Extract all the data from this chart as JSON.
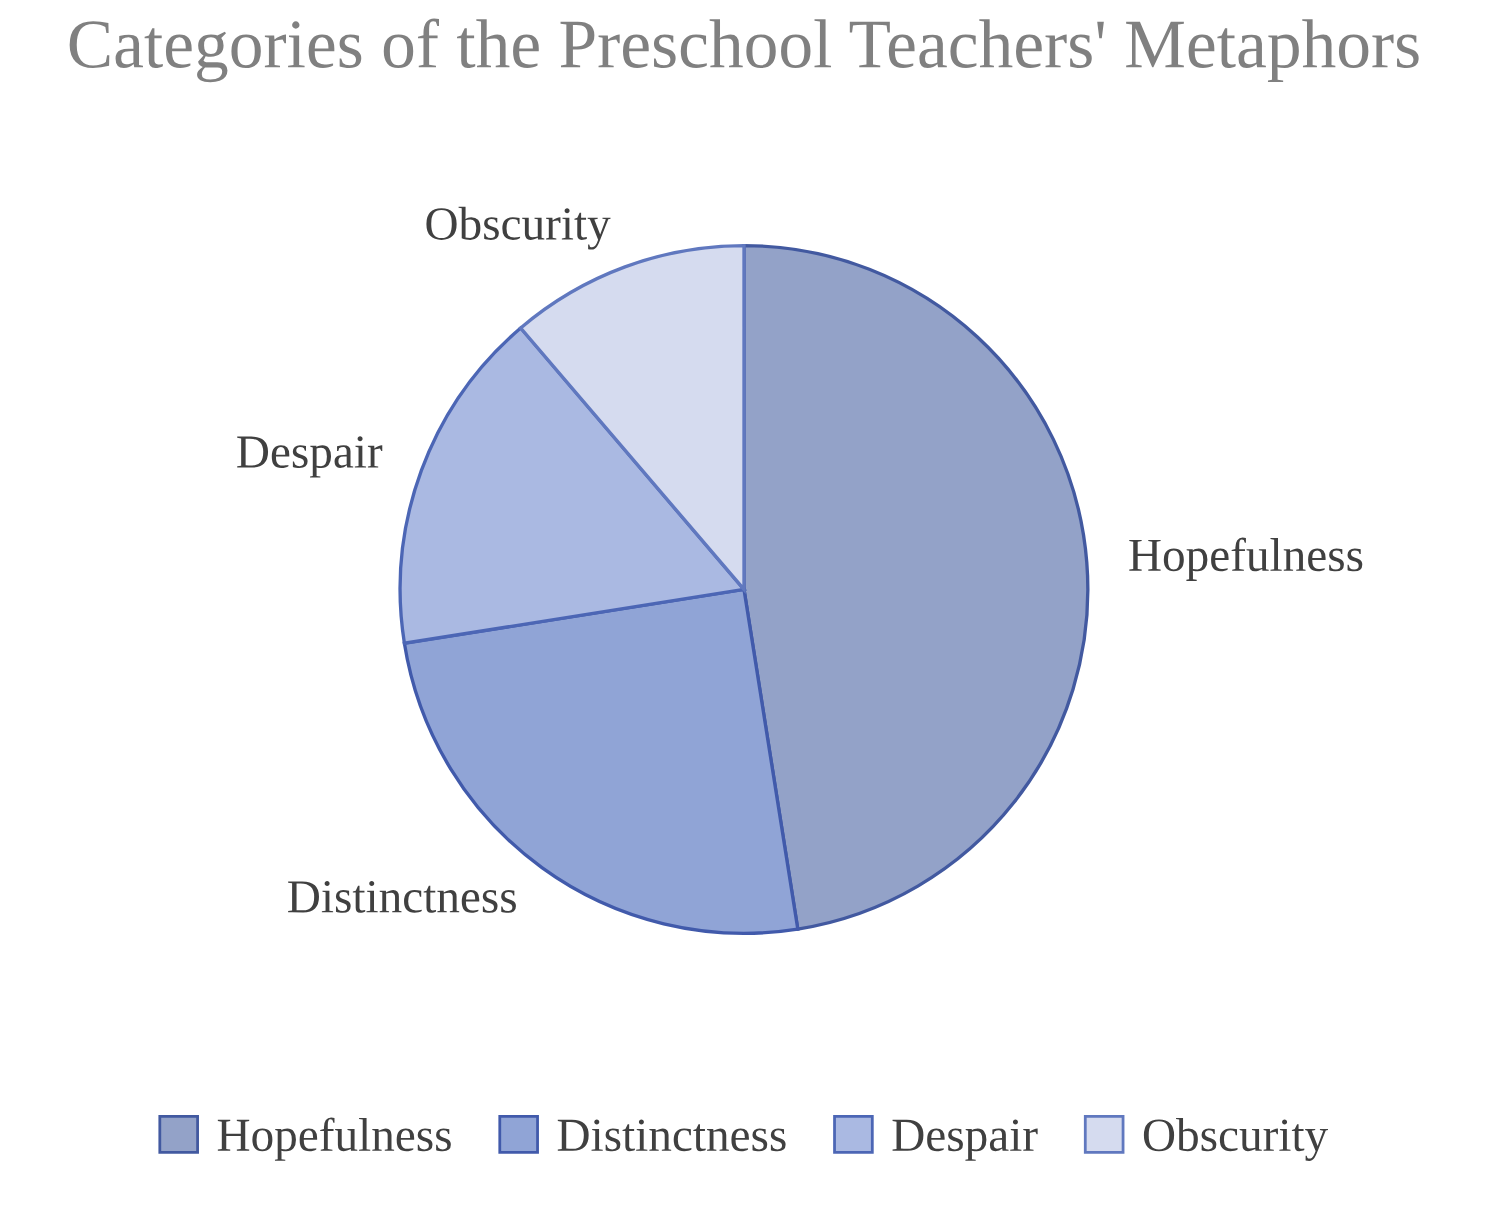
{
  "chart_data": {
    "type": "pie",
    "title": "Categories of the Preschool Teachers' Metaphors",
    "categories": [
      "Hopefulness",
      "Distinctness",
      "Despair",
      "Obscurity"
    ],
    "values": [
      47.5,
      25,
      16.25,
      11.25
    ],
    "colors": [
      "#93a2c8",
      "#90a4d6",
      "#aab9e2",
      "#d5dbef"
    ],
    "legend": "bottom"
  }
}
